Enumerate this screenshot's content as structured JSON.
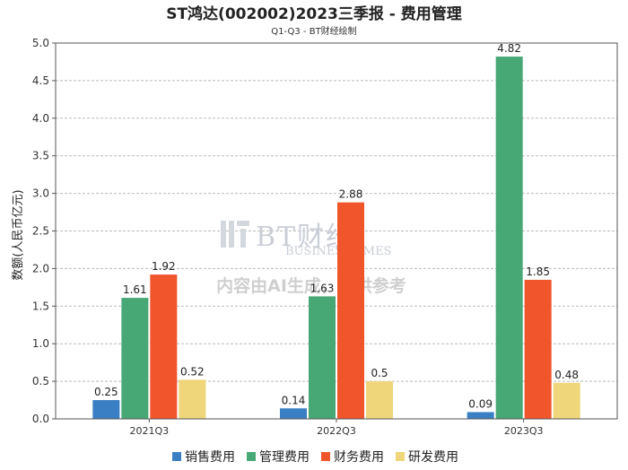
{
  "chart_data": {
    "type": "bar",
    "title": "ST鸿达(002002)2023三季报 - 费用管理",
    "subtitle": "Q1-Q3 - BT财经绘制",
    "xlabel": "",
    "ylabel": "数额(人民币亿元)",
    "categories": [
      "2021Q3",
      "2022Q3",
      "2023Q3"
    ],
    "ylim": [
      0,
      5.0
    ],
    "yticks": [
      0.0,
      0.5,
      1.0,
      1.5,
      2.0,
      2.5,
      3.0,
      3.5,
      4.0,
      4.5,
      5.0
    ],
    "grid": true,
    "legend_position": "bottom",
    "series": [
      {
        "name": "销售费用",
        "color": "#3a7fc4",
        "values": [
          0.25,
          0.14,
          0.09
        ],
        "labels": [
          "0.25",
          "0.14",
          "0.09"
        ]
      },
      {
        "name": "管理费用",
        "color": "#47a876",
        "values": [
          1.61,
          1.63,
          4.82
        ],
        "labels": [
          "1.61",
          "1.63",
          "4.82"
        ]
      },
      {
        "name": "财务费用",
        "color": "#f0552b",
        "values": [
          1.92,
          2.88,
          1.85
        ],
        "labels": [
          "1.92",
          "2.88",
          "1.85"
        ]
      },
      {
        "name": "研发费用",
        "color": "#efd67a",
        "values": [
          0.52,
          0.5,
          0.48
        ],
        "labels": [
          "0.52",
          "0.5",
          "0.48"
        ]
      }
    ]
  },
  "watermark": {
    "brand": "BT财经",
    "brand_en": "BUSINESSTIMES",
    "notice": "内容由AI生成，仅供参考"
  }
}
